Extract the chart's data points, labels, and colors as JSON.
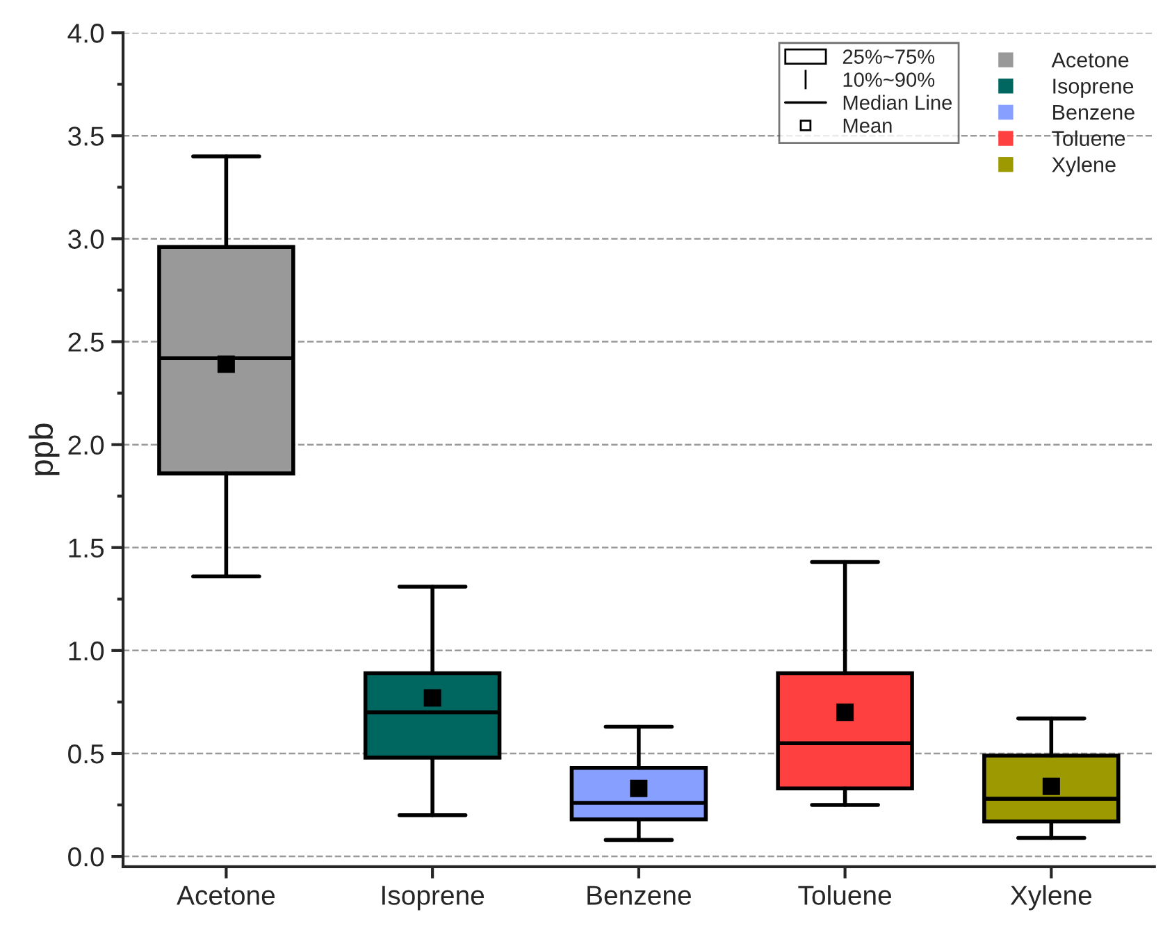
{
  "chart_data": {
    "type": "box",
    "ylabel": "ppb",
    "categories": [
      "Acetone",
      "Isoprene",
      "Benzene",
      "Toluene",
      "Xylene"
    ],
    "series": [
      {
        "name": "Acetone",
        "color": "#999999",
        "boxes": [
          {
            "low": 1.36,
            "q1": 1.86,
            "median": 2.42,
            "q3": 2.96,
            "high": 3.4,
            "mean": 2.39
          },
          null,
          null,
          null,
          null
        ]
      },
      {
        "name": "Isoprene",
        "color": "#006660",
        "boxes": [
          null,
          {
            "low": 0.2,
            "q1": 0.48,
            "median": 0.7,
            "q3": 0.89,
            "high": 1.31,
            "mean": 0.77
          },
          null,
          null,
          null
        ]
      },
      {
        "name": "Benzene",
        "color": "#87a0ff",
        "boxes": [
          null,
          null,
          {
            "low": 0.08,
            "q1": 0.18,
            "median": 0.26,
            "q3": 0.43,
            "high": 0.63,
            "mean": 0.33
          },
          null,
          null
        ]
      },
      {
        "name": "Toluene",
        "color": "#ff4040",
        "boxes": [
          null,
          null,
          null,
          {
            "low": 0.25,
            "q1": 0.33,
            "median": 0.55,
            "q3": 0.89,
            "high": 1.43,
            "mean": 0.7
          },
          null
        ]
      },
      {
        "name": "Xylene",
        "color": "#9c9a00",
        "boxes": [
          null,
          null,
          null,
          null,
          {
            "low": 0.09,
            "q1": 0.17,
            "median": 0.28,
            "q3": 0.49,
            "high": 0.67,
            "mean": 0.34
          }
        ]
      }
    ],
    "ylim": [
      -0.05,
      4.0
    ],
    "yticks": [
      {
        "value": 0,
        "label": "0.0"
      },
      0.5,
      {
        "value": 1,
        "label": "1.0"
      },
      1.5,
      {
        "value": 2,
        "label": "2.0"
      },
      2.5,
      {
        "value": 3,
        "label": "3.0"
      },
      3.5,
      {
        "value": 4,
        "label": "4.0"
      }
    ],
    "grid": "y",
    "legend": "top right",
    "marker": "square",
    "annotations": [
      "25%~75%",
      "10%~90%",
      "Median Line",
      "Mean"
    ]
  }
}
